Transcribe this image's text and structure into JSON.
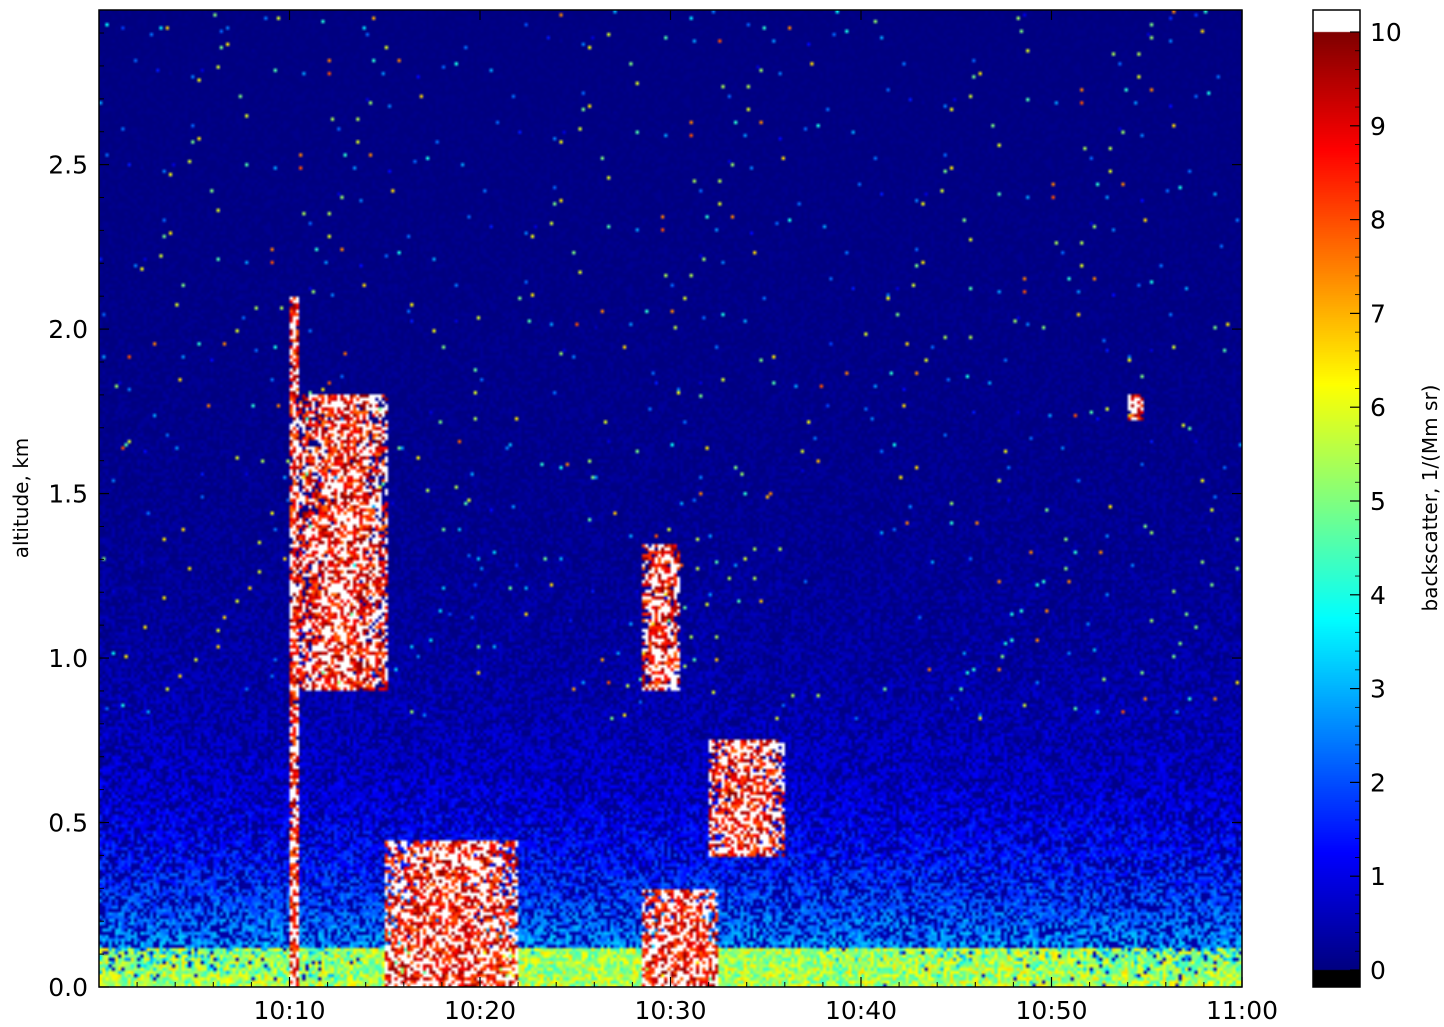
{
  "chart_data": {
    "type": "heatmap",
    "title": "",
    "xlabel": "",
    "ylabel": "altitude, km",
    "colorbar_label": "backscatter, 1/(Mm sr)",
    "colormap": "jet",
    "background_color": "#000000",
    "over_color": "#ffffff",
    "under_color": "#000000",
    "x_ticks": [
      "10:10",
      "10:20",
      "10:30",
      "10:40",
      "10:50",
      "11:00"
    ],
    "y_ticks": [
      "0.0",
      "0.5",
      "1.0",
      "1.5",
      "2.0",
      "2.5"
    ],
    "colorbar_ticks": [
      "0",
      "1",
      "2",
      "3",
      "4",
      "5",
      "6",
      "7",
      "8",
      "9",
      "10"
    ],
    "xlim": [
      "10:00",
      "11:00"
    ],
    "ylim": [
      0,
      2.97
    ],
    "clim": [
      0,
      10
    ],
    "features": [
      {
        "t0": 10.0,
        "t1": 10.5,
        "z0": 0.0,
        "z1": 2.1,
        "value": 11
      },
      {
        "t0": 10.5,
        "t1": 15.2,
        "z0": 0.9,
        "z1": 1.8,
        "value": 11
      },
      {
        "t0": 0.0,
        "t1": 60.0,
        "z0": 0.0,
        "z1": 0.12,
        "value": 6
      },
      {
        "t0": 15.0,
        "t1": 22.0,
        "z0": 0.0,
        "z1": 0.45,
        "value": 11
      },
      {
        "t0": 28.5,
        "t1": 32.5,
        "z0": 0.0,
        "z1": 0.3,
        "value": 11
      },
      {
        "t0": 28.5,
        "t1": 30.5,
        "z0": 0.9,
        "z1": 1.35,
        "value": 11
      },
      {
        "t0": 32.0,
        "t1": 36.0,
        "z0": 0.4,
        "z1": 0.75,
        "value": 11
      },
      {
        "t0": 54.0,
        "t1": 54.8,
        "z0": 1.72,
        "z1": 1.8,
        "value": 11
      }
    ]
  }
}
